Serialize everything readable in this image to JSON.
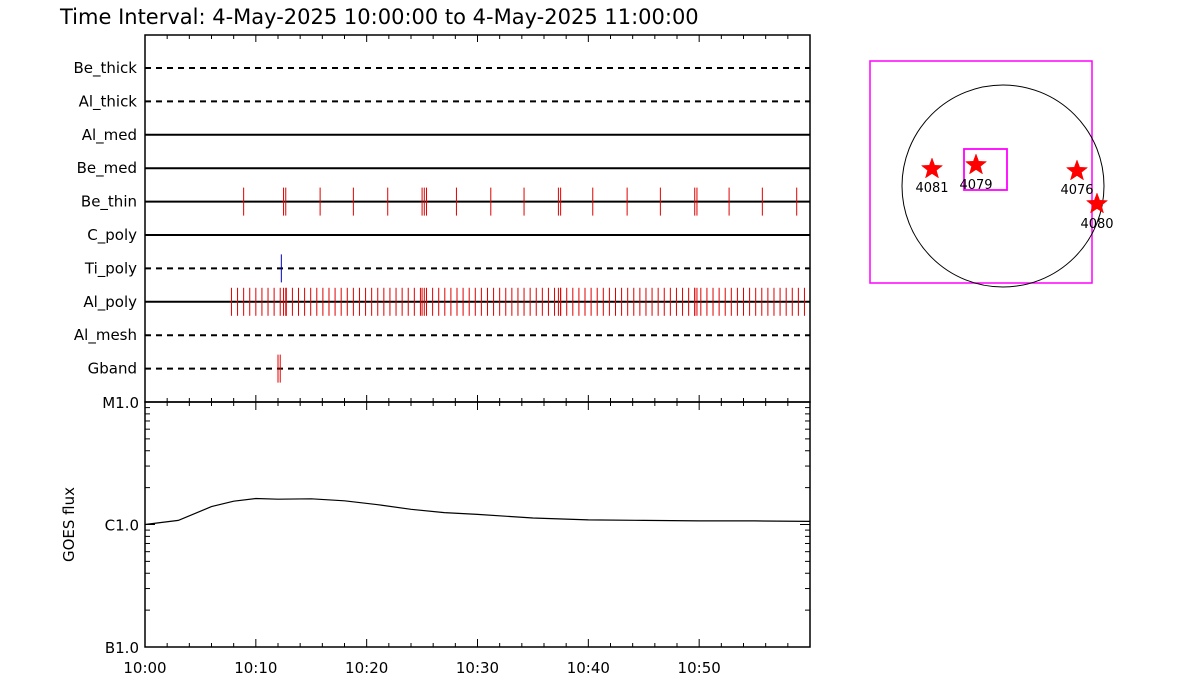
{
  "title": "Time Interval:  4-May-2025 10:00:00 to  4-May-2025 11:00:00",
  "chart_data": [
    {
      "type": "event-timeline",
      "x_start": "10:00",
      "x_end": "11:00",
      "tracks": [
        {
          "label": "Be_thick",
          "style": "dashed",
          "events": []
        },
        {
          "label": "Al_thick",
          "style": "dashed",
          "events": []
        },
        {
          "label": "Al_med",
          "style": "solid",
          "events": []
        },
        {
          "label": "Be_med",
          "style": "solid",
          "events": []
        },
        {
          "label": "Be_thin",
          "style": "solid",
          "color": "#e00000",
          "events": [
            8.9,
            12.5,
            12.7,
            15.8,
            18.8,
            21.9,
            25.0,
            25.2,
            25.4,
            28.1,
            31.2,
            34.2,
            37.3,
            37.5,
            40.4,
            43.5,
            46.5,
            49.6,
            49.8,
            52.7,
            55.7,
            58.8
          ]
        },
        {
          "label": "C_poly",
          "style": "solid",
          "events": []
        },
        {
          "label": "Ti_poly",
          "style": "dashed",
          "color": "#0000c0",
          "events": [
            12.3
          ]
        },
        {
          "label": "Al_poly",
          "style": "solid",
          "color": "#e00000",
          "events_dense": {
            "from": 7.8,
            "to": 60.0,
            "step": 0.55
          }
        },
        {
          "label": "Al_mesh",
          "style": "dashed",
          "events": []
        },
        {
          "label": "Gband",
          "style": "dashed",
          "color": "#e00000",
          "events": [
            12.0,
            12.2
          ]
        }
      ]
    },
    {
      "type": "line",
      "ylabel": "GOES flux",
      "y_scale": "log",
      "y_ticks": [
        "B1.0",
        "C1.0",
        "M1.0"
      ],
      "ylim": [
        1e-07,
        1e-05
      ],
      "x_ticks": [
        "10:00",
        "10:10",
        "10:20",
        "10:30",
        "10:40",
        "10:50"
      ],
      "x_minutes": [
        0,
        3,
        6,
        8,
        10,
        12,
        15,
        18,
        21,
        24,
        27,
        30,
        35,
        40,
        45,
        50,
        55,
        60
      ],
      "y_values": [
        1e-06,
        1.08e-06,
        1.4e-06,
        1.55e-06,
        1.63e-06,
        1.61e-06,
        1.62e-06,
        1.56e-06,
        1.45e-06,
        1.33e-06,
        1.25e-06,
        1.21e-06,
        1.13e-06,
        1.09e-06,
        1.08e-06,
        1.07e-06,
        1.07e-06,
        1.06e-06
      ]
    }
  ],
  "solar_map": {
    "regions": [
      {
        "label": "4081"
      },
      {
        "label": "4079"
      },
      {
        "label": "4076"
      },
      {
        "label": "4080"
      }
    ],
    "colors": {
      "fov": "#ff00ff",
      "star": "#ff0000",
      "disk": "#000000"
    }
  }
}
